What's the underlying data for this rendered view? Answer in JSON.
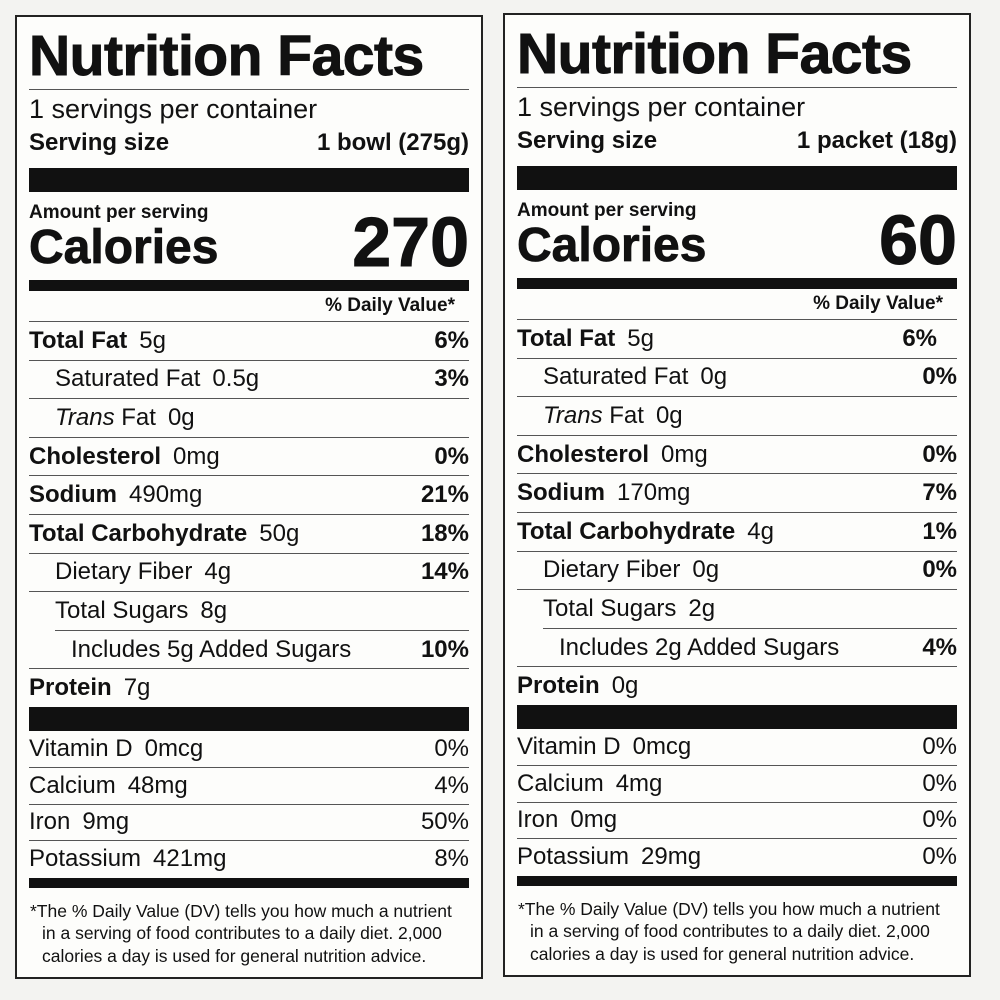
{
  "labels": [
    {
      "title": "Nutrition Facts",
      "servings": "1 servings per container",
      "serving_size_label": "Serving size",
      "serving_size_value": "1 bowl (275g)",
      "amount_per_serving": "Amount per serving",
      "calories_label": "Calories",
      "calories_value": "270",
      "dv_header": "% Daily Value*",
      "nutrients": [
        {
          "name": "Total Fat",
          "amount": "5g",
          "dv": "6%"
        },
        {
          "name": "Saturated Fat",
          "amount": "0.5g",
          "dv": "3%"
        },
        {
          "name": "Trans",
          "name_rest": "Fat",
          "amount": "0g",
          "dv": ""
        },
        {
          "name": "Cholesterol",
          "amount": "0mg",
          "dv": "0%"
        },
        {
          "name": "Sodium",
          "amount": "490mg",
          "dv": "21%"
        },
        {
          "name": "Total Carbohydrate",
          "amount": "50g",
          "dv": "18%"
        },
        {
          "name": "Dietary Fiber",
          "amount": "4g",
          "dv": "14%"
        },
        {
          "name": "Total Sugars",
          "amount": "8g",
          "dv": ""
        },
        {
          "name": "Includes 5g Added Sugars",
          "amount": "",
          "dv": "10%"
        },
        {
          "name": "Protein",
          "amount": "7g",
          "dv": ""
        }
      ],
      "minerals": [
        {
          "name": "Vitamin D",
          "amount": "0mcg",
          "dv": "0%"
        },
        {
          "name": "Calcium",
          "amount": "48mg",
          "dv": "4%"
        },
        {
          "name": "Iron",
          "amount": "9mg",
          "dv": "50%"
        },
        {
          "name": "Potassium",
          "amount": "421mg",
          "dv": "8%"
        }
      ],
      "footnote_line1": "*The % Daily Value (DV) tells you how much a nutrient",
      "footnote_line2": "in a serving of food contributes to a daily diet. 2,000",
      "footnote_line3": "calories a day is used for general nutrition advice."
    },
    {
      "title": "Nutrition Facts",
      "servings": "1 servings per container",
      "serving_size_label": "Serving size",
      "serving_size_value": "1 packet (18g)",
      "amount_per_serving": "Amount per serving",
      "calories_label": "Calories",
      "calories_value": "60",
      "dv_header": "% Daily Value*",
      "nutrients": [
        {
          "name": "Total Fat",
          "amount": "5g",
          "dv": "6%"
        },
        {
          "name": "Saturated Fat",
          "amount": "0g",
          "dv": "0%"
        },
        {
          "name": "Trans",
          "name_rest": "Fat",
          "amount": "0g",
          "dv": ""
        },
        {
          "name": "Cholesterol",
          "amount": "0mg",
          "dv": "0%"
        },
        {
          "name": "Sodium",
          "amount": "170mg",
          "dv": "7%"
        },
        {
          "name": "Total Carbohydrate",
          "amount": "4g",
          "dv": "1%"
        },
        {
          "name": "Dietary Fiber",
          "amount": "0g",
          "dv": "0%"
        },
        {
          "name": "Total Sugars",
          "amount": "2g",
          "dv": ""
        },
        {
          "name": "Includes 2g Added Sugars",
          "amount": "",
          "dv": "4%"
        },
        {
          "name": "Protein",
          "amount": "0g",
          "dv": ""
        }
      ],
      "minerals": [
        {
          "name": "Vitamin D",
          "amount": "0mcg",
          "dv": "0%"
        },
        {
          "name": "Calcium",
          "amount": "4mg",
          "dv": "0%"
        },
        {
          "name": "Iron",
          "amount": "0mg",
          "dv": "0%"
        },
        {
          "name": "Potassium",
          "amount": "29mg",
          "dv": "0%"
        }
      ],
      "footnote_line1": "*The % Daily Value (DV) tells you how much a nutrient",
      "footnote_line2": "in a serving of food contributes to a daily diet. 2,000",
      "footnote_line3": "calories a day is used for general nutrition advice."
    }
  ]
}
